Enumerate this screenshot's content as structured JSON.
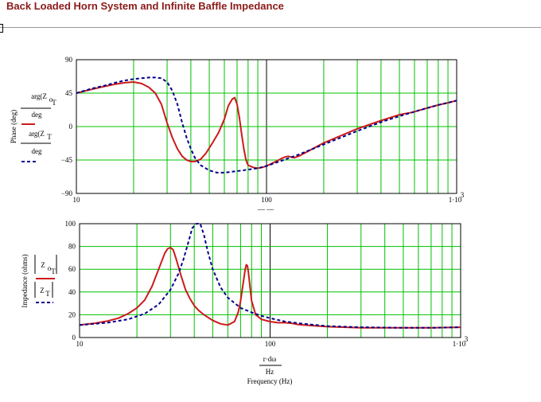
{
  "title": "Back Loaded Horn System and Infinite Baffle Impedance",
  "colors": {
    "horn": "#cc1a1a",
    "baffle": "#00008b",
    "grid": "#00c000",
    "title": "#8b1a1a"
  },
  "chart_data": [
    {
      "type": "line",
      "xscale": "log",
      "xlim": [
        10,
        1000
      ],
      "ylim": [
        -90,
        90
      ],
      "x_ticks": [
        "10",
        "100",
        "1·10"
      ],
      "x_tick_exp": "3",
      "y_ticks": [
        "90",
        "45",
        "0",
        "−45",
        "−90"
      ],
      "ylabel": "Phase (deg)",
      "xlabel": "r·dω / Hz (partially hidden)",
      "grid": true,
      "legend": [
        {
          "expr": "arg(Z_oT)",
          "denom": "deg",
          "style": "solid",
          "color": "#cc1a1a"
        },
        {
          "expr": "arg(Z_T)",
          "denom": "deg",
          "style": "dashed",
          "color": "#00008b"
        }
      ],
      "series": [
        {
          "name": "arg(Z_oT)/deg",
          "style": "solid",
          "color": "#cc1a1a",
          "x": [
            10,
            12,
            14,
            16,
            18,
            20,
            22,
            24,
            26,
            28,
            30,
            32,
            34,
            36,
            38,
            40,
            42,
            45,
            48,
            52,
            56,
            60,
            63,
            66,
            68,
            70,
            72,
            74,
            76,
            78,
            80,
            85,
            90,
            95,
            100,
            110,
            120,
            125,
            130,
            135,
            140,
            150,
            200,
            300,
            400,
            500,
            550,
            580,
            600,
            700,
            800,
            900,
            1000
          ],
          "values": [
            45,
            50,
            54,
            57,
            59,
            60,
            58,
            53,
            45,
            30,
            5,
            -15,
            -30,
            -40,
            -45,
            -47,
            -47,
            -44,
            -36,
            -22,
            -8,
            10,
            28,
            37,
            39,
            30,
            12,
            -10,
            -30,
            -45,
            -52,
            -55,
            -56,
            -55,
            -53,
            -48,
            -43,
            -41,
            -40,
            -41,
            -42,
            -39,
            -22,
            -3,
            8,
            16,
            18,
            19,
            20,
            25,
            29,
            32,
            35
          ]
        },
        {
          "name": "arg(Z_T)/deg",
          "style": "dashed",
          "color": "#00008b",
          "x": [
            10,
            12,
            14,
            16,
            18,
            20,
            22,
            24,
            26,
            28,
            30,
            32,
            34,
            36,
            38,
            40,
            42,
            45,
            50,
            55,
            60,
            65,
            70,
            80,
            90,
            100,
            120,
            150,
            200,
            300,
            400,
            500,
            600,
            700,
            800,
            900,
            1000
          ],
          "values": [
            45,
            51,
            55,
            59,
            62,
            64,
            65,
            66,
            66,
            65,
            60,
            48,
            30,
            5,
            -15,
            -30,
            -42,
            -52,
            -59,
            -62,
            -62,
            -61,
            -60,
            -58,
            -56,
            -53,
            -46,
            -37,
            -24,
            -6,
            6,
            14,
            20,
            25,
            29,
            32,
            35
          ]
        }
      ]
    },
    {
      "type": "line",
      "xscale": "log",
      "xlim": [
        10,
        1000
      ],
      "ylim": [
        0,
        100
      ],
      "x_ticks": [
        "10",
        "100",
        "1·10"
      ],
      "x_tick_exp": "3",
      "y_ticks": [
        "100",
        "80",
        "60",
        "40",
        "20",
        "0"
      ],
      "ylabel": "Impedance (ohms)",
      "xlabel_expr": "r·dω",
      "xlabel_denom": "Hz",
      "xlabel": "Frequency (Hz)",
      "grid": true,
      "legend": [
        {
          "expr": "|Z_oT|",
          "style": "solid",
          "color": "#cc1a1a"
        },
        {
          "expr": "|Z_T|",
          "style": "dashed",
          "color": "#00008b"
        }
      ],
      "series": [
        {
          "name": "|Z_oT|",
          "style": "solid",
          "color": "#cc1a1a",
          "x": [
            10,
            12,
            14,
            16,
            18,
            20,
            22,
            24,
            26,
            28,
            29,
            30,
            31,
            32,
            34,
            36,
            38,
            40,
            42,
            45,
            50,
            55,
            60,
            65,
            68,
            70,
            72,
            74,
            75,
            76,
            77,
            78,
            80,
            84,
            90,
            100,
            110,
            120,
            130,
            140,
            150,
            200,
            300,
            500,
            700,
            1000
          ],
          "values": [
            11,
            12.5,
            14.5,
            17,
            21,
            26,
            33,
            45,
            60,
            74,
            78,
            79,
            77,
            70,
            55,
            42,
            34,
            28,
            24,
            20,
            15,
            12,
            11,
            14,
            22,
            32,
            46,
            60,
            64,
            63,
            57,
            48,
            32,
            20,
            16,
            14,
            13,
            13,
            12.5,
            11.5,
            11,
            9.5,
            8.5,
            8.5,
            8.5,
            9
          ]
        },
        {
          "name": "|Z_T|",
          "style": "dashed",
          "color": "#00008b",
          "x": [
            10,
            14,
            18,
            22,
            26,
            30,
            33,
            35,
            37,
            39,
            41,
            43,
            45,
            47,
            50,
            55,
            60,
            70,
            80,
            90,
            100,
            120,
            150,
            200,
            300,
            500,
            700,
            1000
          ],
          "values": [
            11,
            13,
            16,
            21,
            29,
            42,
            56,
            68,
            82,
            96,
            100,
            100,
            90,
            76,
            60,
            44,
            35,
            26,
            22,
            19,
            17,
            14,
            12,
            10,
            9,
            8.5,
            8.5,
            9
          ]
        }
      ]
    }
  ]
}
